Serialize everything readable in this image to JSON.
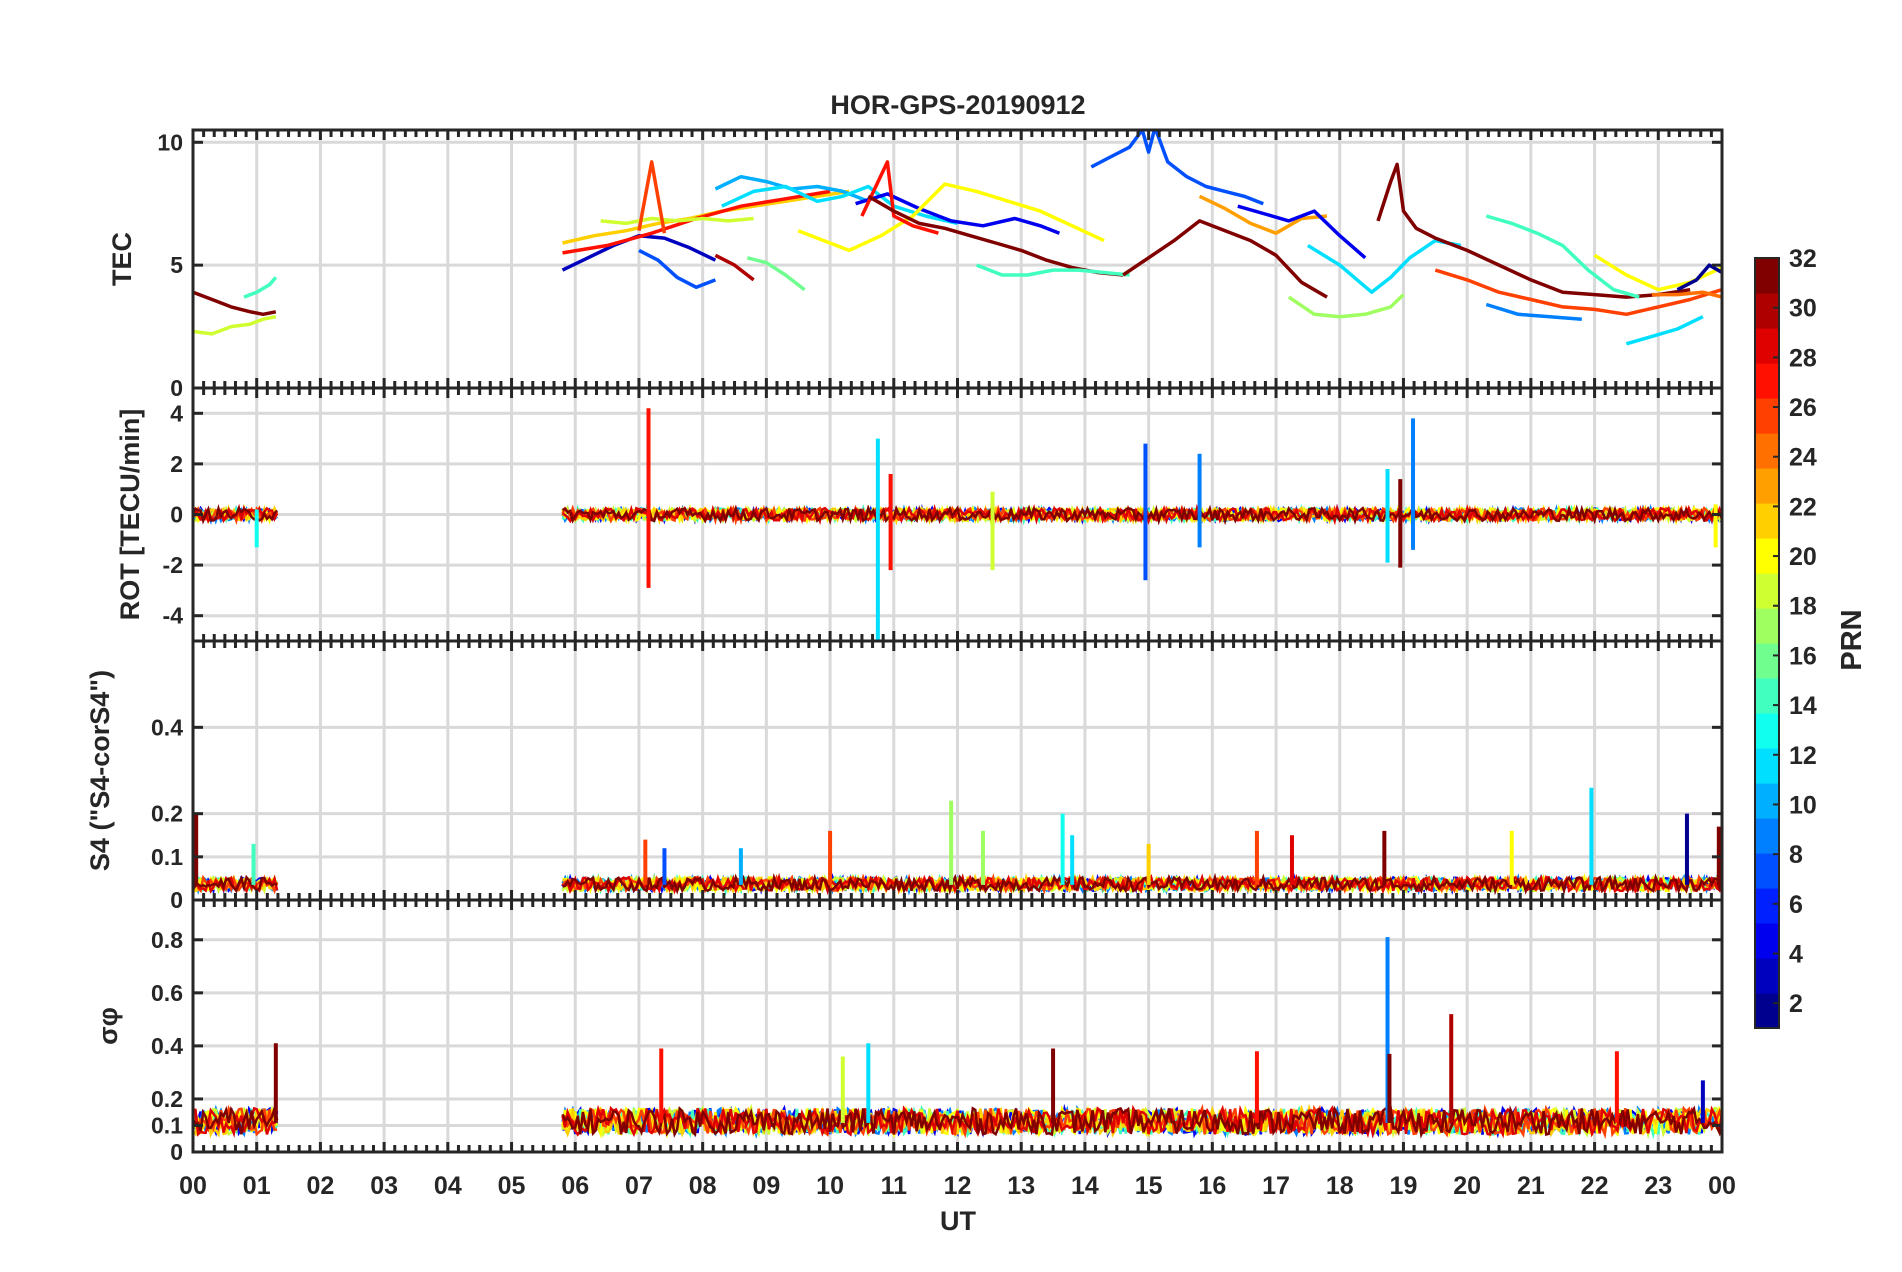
{
  "chart_data": {
    "type": "line",
    "title": "HOR-GPS-20190912",
    "xlabel": "UT",
    "x_ticks": [
      "00",
      "01",
      "02",
      "03",
      "04",
      "05",
      "06",
      "07",
      "08",
      "09",
      "10",
      "11",
      "12",
      "13",
      "14",
      "15",
      "16",
      "17",
      "18",
      "19",
      "20",
      "21",
      "22",
      "23",
      "00"
    ],
    "xlim": [
      0,
      24
    ],
    "colorbar": {
      "label": "PRN",
      "range": [
        1,
        32
      ],
      "ticks": [
        "2",
        "4",
        "6",
        "8",
        "10",
        "12",
        "14",
        "16",
        "18",
        "20",
        "22",
        "24",
        "26",
        "28",
        "30",
        "32"
      ],
      "colors": [
        "#00008f",
        "#0000bf",
        "#0000ef",
        "#0020ff",
        "#0050ff",
        "#0080ff",
        "#00afff",
        "#00dfff",
        "#10ffef",
        "#40ffbf",
        "#70ff8f",
        "#9fff60",
        "#cfff30",
        "#ffff00",
        "#ffcf00",
        "#ff9f00",
        "#ff7000",
        "#ff4000",
        "#ff1000",
        "#df0000",
        "#af0000",
        "#800000"
      ]
    },
    "panels": [
      {
        "id": "tec",
        "ylabel": "TEC",
        "ylim": [
          0,
          10.5
        ],
        "yticks": [
          0,
          5,
          10
        ],
        "ytick_labels": [
          "0",
          "5",
          "10"
        ],
        "series": [
          {
            "prn": 31,
            "x": [
              0,
              0.3,
              0.6,
              0.9,
              1.1,
              1.3
            ],
            "y": [
              3.9,
              3.6,
              3.3,
              3.1,
              3.0,
              3.1
            ]
          },
          {
            "prn": 19,
            "x": [
              0,
              0.3,
              0.6,
              0.9,
              1.1,
              1.3
            ],
            "y": [
              2.3,
              2.2,
              2.5,
              2.6,
              2.8,
              2.9
            ]
          },
          {
            "prn": 14,
            "x": [
              0.8,
              1.0,
              1.2,
              1.3
            ],
            "y": [
              3.7,
              3.9,
              4.2,
              4.5
            ]
          },
          {
            "prn": 3,
            "x": [
              5.8,
              6.2,
              6.6,
              7.0,
              7.4,
              7.8,
              8.2
            ],
            "y": [
              4.8,
              5.3,
              5.8,
              6.2,
              6.1,
              5.7,
              5.2
            ]
          },
          {
            "prn": 8,
            "x": [
              7.0,
              7.3,
              7.6,
              7.9,
              8.2
            ],
            "y": [
              5.6,
              5.2,
              4.5,
              4.1,
              4.4
            ]
          },
          {
            "prn": 22,
            "x": [
              5.8,
              6.3,
              6.8,
              7.3,
              7.8,
              8.3,
              8.8,
              9.3,
              9.8,
              10.3
            ],
            "y": [
              5.9,
              6.2,
              6.4,
              6.7,
              6.9,
              7.2,
              7.4,
              7.6,
              7.8,
              8.0
            ]
          },
          {
            "prn": 27,
            "x": [
              5.8,
              6.5,
              7.2,
              7.9,
              8.6,
              9.3,
              10.0
            ],
            "y": [
              5.5,
              5.8,
              6.3,
              6.9,
              7.4,
              7.7,
              8.0
            ]
          },
          {
            "prn": 30,
            "x": [
              8.2,
              8.5,
              8.8
            ],
            "y": [
              5.4,
              5.0,
              4.4
            ]
          },
          {
            "prn": 16,
            "x": [
              8.7,
              9.0,
              9.3,
              9.6
            ],
            "y": [
              5.3,
              5.1,
              4.6,
              4.0
            ]
          },
          {
            "prn": 10,
            "x": [
              8.2,
              8.6,
              9.0,
              9.4,
              9.8,
              10.2,
              10.6
            ],
            "y": [
              8.1,
              8.6,
              8.4,
              8.1,
              8.2,
              8.0,
              7.6
            ]
          },
          {
            "prn": 12,
            "x": [
              8.3,
              8.8,
              9.3,
              9.8,
              10.2,
              10.6,
              11.0,
              11.5,
              12.0
            ],
            "y": [
              7.4,
              8.0,
              8.2,
              7.6,
              7.8,
              8.2,
              7.4,
              7.0,
              6.7
            ]
          },
          {
            "prn": 4,
            "x": [
              10.4,
              10.9,
              11.4,
              11.9,
              12.4,
              12.9,
              13.3,
              13.6
            ],
            "y": [
              7.5,
              7.9,
              7.3,
              6.8,
              6.6,
              6.9,
              6.6,
              6.3
            ]
          },
          {
            "prn": 18,
            "x": [
              6.4,
              6.8,
              7.2,
              7.6,
              8.0,
              8.4,
              8.8
            ],
            "y": [
              6.8,
              6.7,
              6.9,
              6.8,
              6.9,
              6.8,
              6.9
            ]
          },
          {
            "prn": 20,
            "x": [
              9.5,
              9.9,
              10.3,
              10.8,
              11.3,
              11.8,
              12.3,
              12.8,
              13.3,
              13.8,
              14.3
            ],
            "y": [
              6.4,
              6.0,
              5.6,
              6.2,
              7.0,
              8.3,
              8.0,
              7.6,
              7.2,
              6.6,
              6.0
            ]
          },
          {
            "prn": 27,
            "x": [
              10.5,
              10.9,
              11.0,
              11.3,
              11.7
            ],
            "y": [
              7.0,
              9.2,
              7.0,
              6.6,
              6.3
            ]
          },
          {
            "prn": 26,
            "x": [
              7.0,
              7.2,
              7.4
            ],
            "y": [
              6.4,
              9.2,
              6.3
            ]
          },
          {
            "prn": 32,
            "x": [
              10.6,
              11.0,
              11.4,
              11.8,
              12.2,
              12.6,
              13.0,
              13.4,
              13.8,
              14.2,
              14.6
            ],
            "y": [
              7.8,
              7.2,
              6.7,
              6.5,
              6.2,
              5.9,
              5.6,
              5.2,
              4.9,
              4.7,
              4.6
            ]
          },
          {
            "prn": 15,
            "x": [
              12.3,
              12.7,
              13.1,
              13.5,
              13.9,
              14.3,
              14.7
            ],
            "y": [
              5.0,
              4.6,
              4.6,
              4.8,
              4.8,
              4.7,
              4.6
            ]
          },
          {
            "prn": 8,
            "x": [
              14.1,
              14.4,
              14.7,
              14.9,
              15.0,
              15.1,
              15.3,
              15.6,
              15.9,
              16.2,
              16.5,
              16.8
            ],
            "y": [
              9.0,
              9.4,
              9.8,
              10.5,
              9.6,
              10.6,
              9.2,
              8.6,
              8.2,
              8.0,
              7.8,
              7.5
            ]
          },
          {
            "prn": 31,
            "x": [
              14.6,
              15.0,
              15.4,
              15.8,
              16.2,
              16.6,
              17.0,
              17.4,
              17.8
            ],
            "y": [
              4.6,
              5.3,
              6.0,
              6.8,
              6.4,
              6.0,
              5.4,
              4.3,
              3.7
            ]
          },
          {
            "prn": 23,
            "x": [
              15.8,
              16.2,
              16.6,
              17.0,
              17.4,
              17.8
            ],
            "y": [
              7.8,
              7.3,
              6.7,
              6.3,
              6.9,
              7.0
            ]
          },
          {
            "prn": 4,
            "x": [
              16.4,
              16.8,
              17.2,
              17.6,
              18.0,
              18.4
            ],
            "y": [
              7.4,
              7.1,
              6.8,
              7.2,
              6.2,
              5.3
            ]
          },
          {
            "prn": 17,
            "x": [
              17.2,
              17.6,
              18.0,
              18.4,
              18.8,
              19.0
            ],
            "y": [
              3.7,
              3.0,
              2.9,
              3.0,
              3.3,
              3.8
            ]
          },
          {
            "prn": 11,
            "x": [
              17.5,
              18.0,
              18.5,
              18.8,
              19.1,
              19.5,
              19.9
            ],
            "y": [
              5.8,
              5.0,
              3.9,
              4.5,
              5.3,
              6.0,
              5.8
            ]
          },
          {
            "prn": 31,
            "x": [
              18.6,
              18.8,
              18.9,
              19.0,
              19.2,
              19.5,
              20.0,
              20.5,
              21.0,
              21.5,
              22.0,
              22.5,
              23.0,
              23.5
            ],
            "y": [
              6.8,
              8.4,
              9.1,
              7.2,
              6.5,
              6.1,
              5.6,
              5.0,
              4.4,
              3.9,
              3.8,
              3.7,
              3.8,
              4.0
            ]
          },
          {
            "prn": 26,
            "x": [
              19.5,
              20.0,
              20.5,
              21.0,
              21.5,
              22.0,
              22.5,
              23.0,
              23.5,
              24.0
            ],
            "y": [
              4.8,
              4.4,
              3.9,
              3.6,
              3.3,
              3.2,
              3.0,
              3.3,
              3.6,
              4.0
            ]
          },
          {
            "prn": 9,
            "x": [
              20.3,
              20.8,
              21.3,
              21.8
            ],
            "y": [
              3.4,
              3.0,
              2.9,
              2.8
            ]
          },
          {
            "prn": 15,
            "x": [
              20.3,
              20.7,
              21.1,
              21.5,
              21.9,
              22.3,
              22.7
            ],
            "y": [
              7.0,
              6.7,
              6.3,
              5.8,
              4.8,
              4.0,
              3.7
            ]
          },
          {
            "prn": 11,
            "x": [
              22.5,
              22.9,
              23.3,
              23.7
            ],
            "y": [
              1.8,
              2.1,
              2.4,
              2.9
            ]
          },
          {
            "prn": 20,
            "x": [
              22.0,
              22.5,
              23.0,
              23.5,
              24.0
            ],
            "y": [
              5.4,
              4.6,
              4.0,
              4.3,
              4.9
            ]
          },
          {
            "prn": 2,
            "x": [
              23.3,
              23.6,
              23.8,
              24.0
            ],
            "y": [
              4.0,
              4.4,
              5.0,
              4.7
            ]
          },
          {
            "prn": 24,
            "x": [
              22.9,
              23.3,
              23.7,
              24.0
            ],
            "y": [
              3.8,
              3.8,
              3.9,
              3.7
            ]
          }
        ]
      },
      {
        "id": "rot",
        "ylabel": "ROT [TECU/min]",
        "ylim": [
          -5,
          5
        ],
        "yticks": [
          -4,
          -2,
          0,
          2,
          4
        ],
        "ytick_labels": [
          "-4",
          "-2",
          "0",
          "2",
          "4"
        ],
        "background": {
          "windows": [
            [
              0,
              1.35
            ],
            [
              5.8,
              24
            ]
          ],
          "amplitude": 0.25
        },
        "spikes": [
          {
            "prn": 27,
            "x": 7.15,
            "y0": -2.9,
            "y1": 4.2
          },
          {
            "prn": 13,
            "x": 1.0,
            "y0": -1.3,
            "y1": 0.2
          },
          {
            "prn": 11,
            "x": 10.75,
            "y0": -5.0,
            "y1": 3.0
          },
          {
            "prn": 27,
            "x": 10.95,
            "y0": -2.2,
            "y1": 1.6
          },
          {
            "prn": 7,
            "x": 14.95,
            "y0": -2.6,
            "y1": 2.8
          },
          {
            "prn": 9,
            "x": 15.8,
            "y0": -1.3,
            "y1": 2.4
          },
          {
            "prn": 11,
            "x": 18.75,
            "y0": -1.9,
            "y1": 1.8
          },
          {
            "prn": 9,
            "x": 19.15,
            "y0": -1.4,
            "y1": 3.8
          },
          {
            "prn": 31,
            "x": 18.95,
            "y0": -2.1,
            "y1": 1.4
          },
          {
            "prn": 18,
            "x": 12.55,
            "y0": -2.2,
            "y1": 0.9
          },
          {
            "prn": 20,
            "x": 23.9,
            "y0": -1.3,
            "y1": 0.4
          }
        ]
      },
      {
        "id": "s4",
        "ylabel": "S4 (\"S4-corS4\")",
        "ylim": [
          0,
          0.6
        ],
        "yticks": [
          0,
          0.1,
          0.2,
          0.4
        ],
        "ytick_labels": [
          "0",
          "0.1",
          "0.2",
          "0.4"
        ],
        "background": {
          "windows": [
            [
              0,
              1.35
            ],
            [
              5.8,
              24
            ]
          ],
          "level": 0.035
        },
        "spikes": [
          {
            "prn": 31,
            "x": 0.05,
            "y": 0.2
          },
          {
            "prn": 14,
            "x": 0.95,
            "y": 0.13
          },
          {
            "prn": 26,
            "x": 7.1,
            "y": 0.14
          },
          {
            "prn": 8,
            "x": 7.4,
            "y": 0.12
          },
          {
            "prn": 10,
            "x": 8.6,
            "y": 0.12
          },
          {
            "prn": 26,
            "x": 10.0,
            "y": 0.16
          },
          {
            "prn": 17,
            "x": 11.9,
            "y": 0.23
          },
          {
            "prn": 17,
            "x": 12.4,
            "y": 0.16
          },
          {
            "prn": 13,
            "x": 13.65,
            "y": 0.2
          },
          {
            "prn": 12,
            "x": 13.8,
            "y": 0.15
          },
          {
            "prn": 21,
            "x": 15.0,
            "y": 0.13
          },
          {
            "prn": 25,
            "x": 16.7,
            "y": 0.16
          },
          {
            "prn": 29,
            "x": 17.25,
            "y": 0.15
          },
          {
            "prn": 31,
            "x": 18.7,
            "y": 0.16
          },
          {
            "prn": 20,
            "x": 20.7,
            "y": 0.16
          },
          {
            "prn": 11,
            "x": 21.95,
            "y": 0.26
          },
          {
            "prn": 2,
            "x": 23.45,
            "y": 0.2
          },
          {
            "prn": 31,
            "x": 23.95,
            "y": 0.17
          }
        ]
      },
      {
        "id": "sigma_phi",
        "ylabel": "σφ",
        "ylim": [
          0,
          0.95
        ],
        "yticks": [
          0,
          0.1,
          0.2,
          0.4,
          0.6,
          0.8
        ],
        "ytick_labels": [
          "0",
          "0.1",
          "0.2",
          "0.4",
          "0.6",
          "0.8"
        ],
        "background": {
          "windows": [
            [
              0,
              1.35
            ],
            [
              5.8,
              24
            ]
          ],
          "level": 0.11
        },
        "spikes": [
          {
            "prn": 31,
            "x": 1.3,
            "y": 0.41
          },
          {
            "prn": 27,
            "x": 7.35,
            "y": 0.39
          },
          {
            "prn": 12,
            "x": 10.6,
            "y": 0.41
          },
          {
            "prn": 18,
            "x": 10.2,
            "y": 0.36
          },
          {
            "prn": 31,
            "x": 13.5,
            "y": 0.39
          },
          {
            "prn": 27,
            "x": 16.7,
            "y": 0.38
          },
          {
            "prn": 9,
            "x": 18.75,
            "y": 0.81
          },
          {
            "prn": 31,
            "x": 18.78,
            "y": 0.37
          },
          {
            "prn": 30,
            "x": 19.75,
            "y": 0.52
          },
          {
            "prn": 27,
            "x": 22.35,
            "y": 0.38
          },
          {
            "prn": 3,
            "x": 23.7,
            "y": 0.27
          }
        ]
      }
    ]
  }
}
